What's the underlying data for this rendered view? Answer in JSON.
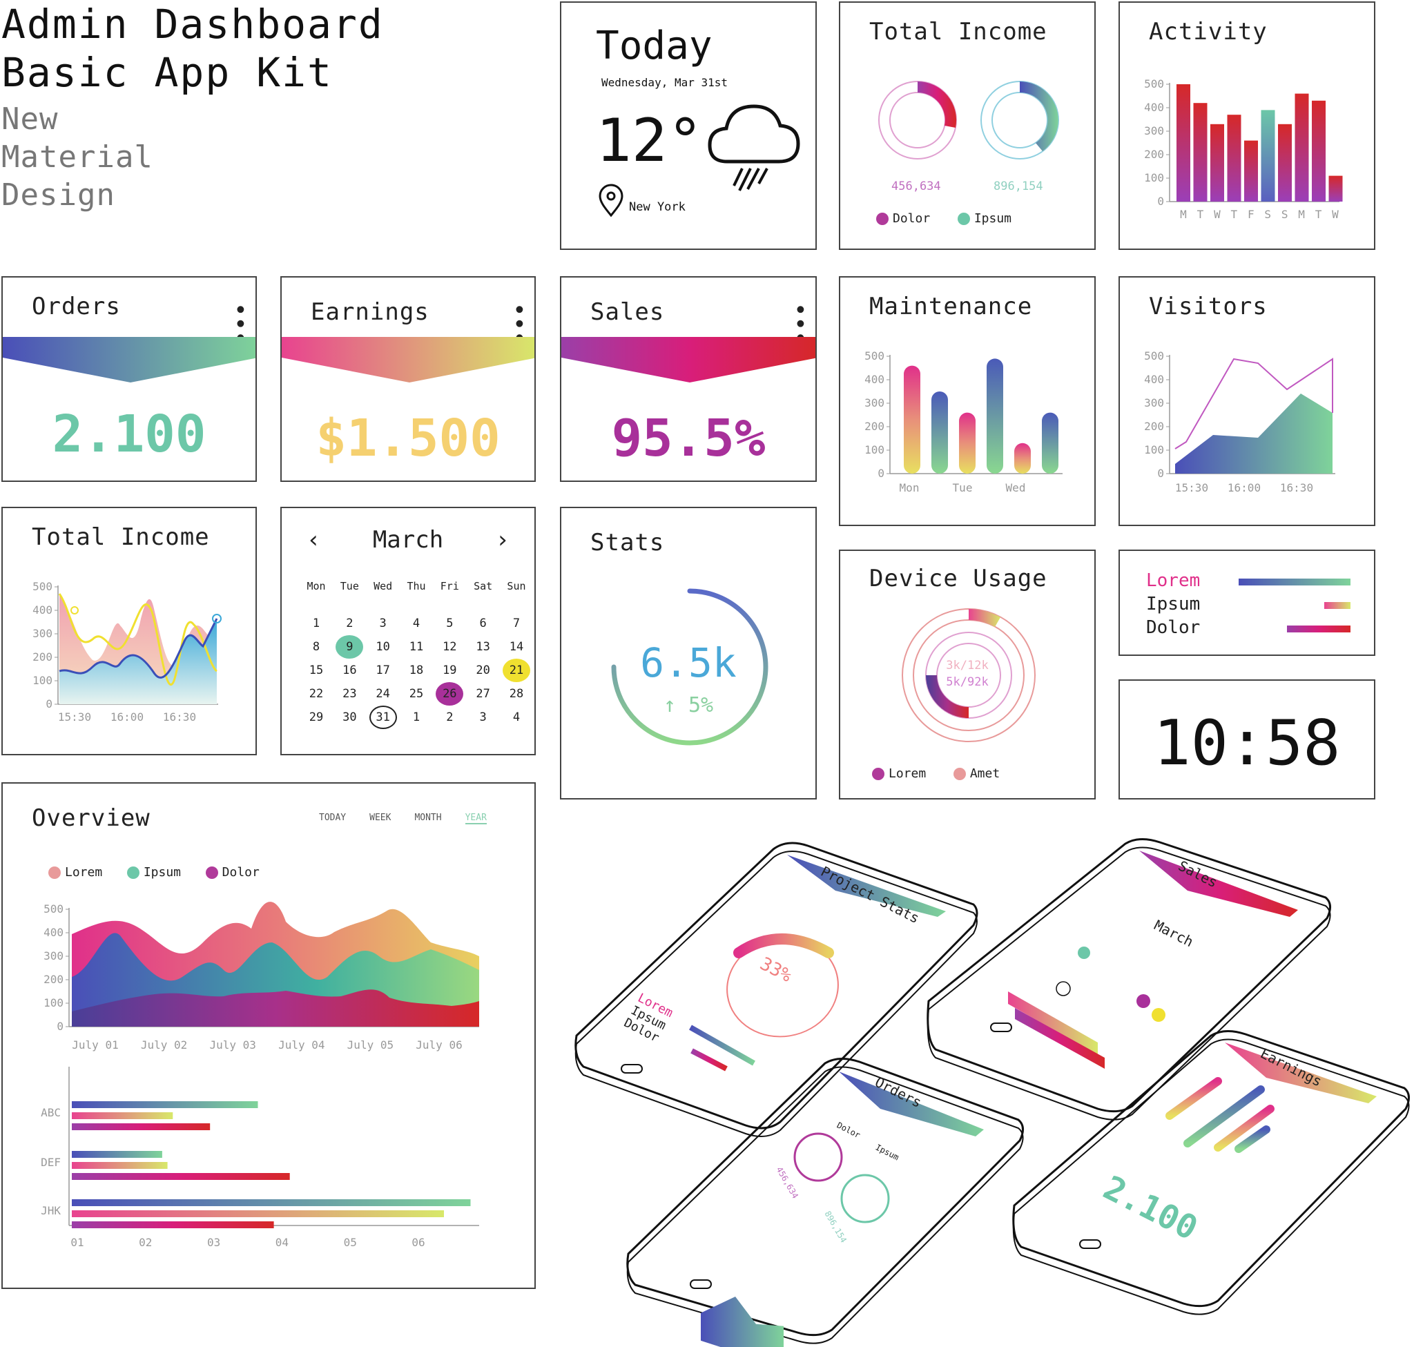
{
  "header": {
    "title_line1": "Admin Dashboard",
    "title_line2": "Basic App Kit",
    "subtitle_line1": "New",
    "subtitle_line2": "Material",
    "subtitle_line3": "Design"
  },
  "today": {
    "title": "Today",
    "date": "Wednesday, Mar 31st",
    "temperature": "12°",
    "location": "New York",
    "weather_icon": "rain-cloud-icon",
    "location_icon": "location-pin-icon"
  },
  "total_income_donut": {
    "title": "Total Income",
    "value1": "456,634",
    "value2": "896,154",
    "legend1": "Dolor",
    "legend2": "Ipsum",
    "color1": "#b03a9a",
    "color2": "#6cc7a8"
  },
  "activity": {
    "title": "Activity",
    "y_ticks": [
      "500",
      "400",
      "300",
      "200",
      "100",
      "0"
    ],
    "x_ticks": [
      "M",
      "T",
      "W",
      "T",
      "F",
      "S",
      "S",
      "M",
      "T",
      "W"
    ]
  },
  "orders": {
    "title": "Orders",
    "value": "2.100",
    "menu_icon": "kebab-menu-icon"
  },
  "earnings": {
    "title": "Earnings",
    "value": "$1.500",
    "menu_icon": "kebab-menu-icon"
  },
  "sales": {
    "title": "Sales",
    "value": "95.5%",
    "menu_icon": "kebab-menu-icon"
  },
  "maintenance": {
    "title": "Maintenance",
    "y_ticks": [
      "500",
      "400",
      "300",
      "200",
      "100",
      "0"
    ],
    "x_ticks": [
      "Mon",
      "Tue",
      "Wed"
    ]
  },
  "visitors": {
    "title": "Visitors",
    "y_ticks": [
      "500",
      "400",
      "300",
      "200",
      "100",
      "0"
    ],
    "x_ticks": [
      "15:30",
      "16:00",
      "16:30"
    ]
  },
  "total_income_area": {
    "title": "Total Income",
    "y_ticks": [
      "500",
      "400",
      "300",
      "200",
      "100",
      "0"
    ],
    "x_ticks": [
      "15:30",
      "16:00",
      "16:30"
    ]
  },
  "calendar": {
    "month": "March",
    "prev_icon": "chevron-left-icon",
    "next_icon": "chevron-right-icon",
    "weekdays": [
      "Mon",
      "Tue",
      "Wed",
      "Thu",
      "Fri",
      "Sat",
      "Sun"
    ],
    "weeks": [
      [
        "1",
        "2",
        "3",
        "4",
        "5",
        "6",
        "7"
      ],
      [
        "8",
        "9",
        "10",
        "11",
        "12",
        "13",
        "14"
      ],
      [
        "15",
        "16",
        "17",
        "18",
        "19",
        "20",
        "21"
      ],
      [
        "22",
        "23",
        "24",
        "25",
        "26",
        "27",
        "28"
      ],
      [
        "29",
        "30",
        "31",
        "1",
        "2",
        "3",
        "4"
      ]
    ]
  },
  "stats": {
    "title": "Stats",
    "value": "6.5k",
    "change": "↑ 5%",
    "progress": 0.75
  },
  "device_usage": {
    "title": "Device Usage",
    "inner1": "3k/12k",
    "inner2": "5k/92k",
    "legend1": "Lorem",
    "legend2": "Amet",
    "color1": "#b03a9a",
    "color2": "#e89a9a"
  },
  "bars_legend": {
    "item1": "Lorem",
    "item2": "Ipsum",
    "item3": "Dolor"
  },
  "clock": {
    "time": "10:58"
  },
  "overview": {
    "title": "Overview",
    "tabs": [
      "TODAY",
      "WEEK",
      "MONTH",
      "YEAR"
    ],
    "active_tab": "YEAR",
    "legend": [
      "Lorem",
      "Ipsum",
      "Dolor"
    ],
    "y_ticks": [
      "500",
      "400",
      "300",
      "200",
      "100",
      "0"
    ],
    "x_ticks": [
      "July 01",
      "July 02",
      "July 03",
      "July 04",
      "July 05",
      "July 06"
    ],
    "bar_categories": [
      "ABC",
      "DEF",
      "JHK"
    ],
    "bar_x_ticks": [
      "01",
      "02",
      "03",
      "04",
      "05",
      "06"
    ]
  },
  "phones": {
    "project_stats": {
      "title": "Project Stats",
      "percent": "33%",
      "l1": "Lorem",
      "l2": "Ipsum",
      "l3": "Dolor"
    },
    "sales": {
      "title": "Sales",
      "month": "March"
    },
    "orders": {
      "title": "Orders",
      "l1": "Dolor",
      "l2": "Ipsum",
      "v1": "456,634",
      "v2": "896,154"
    },
    "earnings": {
      "title": "Earnings",
      "value": "2.100"
    }
  }
}
